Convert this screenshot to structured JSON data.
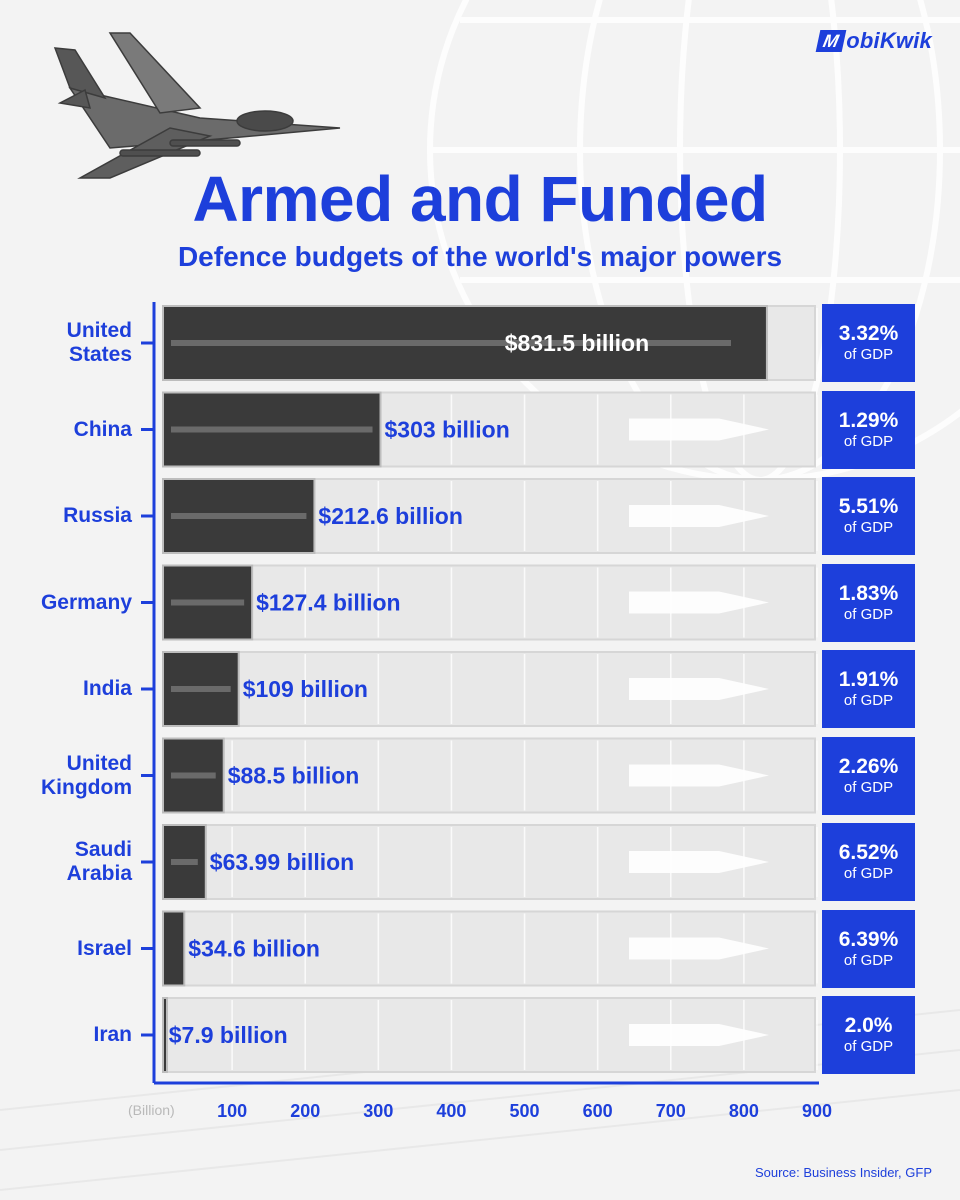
{
  "brand": {
    "name": "MobiKwik",
    "mark": "M",
    "rest": "obiKwik",
    "color": "#1d3fdb"
  },
  "header": {
    "title": "Armed and Funded",
    "subtitle": "Defence budgets of the world's major powers"
  },
  "chart_data": {
    "type": "bar",
    "orientation": "horizontal",
    "title": "Armed and Funded",
    "subtitle": "Defence budgets of the world's major powers",
    "xlabel": "(Billion)",
    "xlim": [
      0,
      900
    ],
    "xticks": [
      100,
      200,
      300,
      400,
      500,
      600,
      700,
      800,
      900
    ],
    "categories": [
      "United States",
      "China",
      "Russia",
      "Germany",
      "India",
      "United Kingdom",
      "Saudi Arabia",
      "Israel",
      "Iran"
    ],
    "category_lines": [
      [
        "United",
        "States"
      ],
      [
        "China"
      ],
      [
        "Russia"
      ],
      [
        "Germany"
      ],
      [
        "India"
      ],
      [
        "United",
        "Kingdom"
      ],
      [
        "Saudi",
        "Arabia"
      ],
      [
        "Israel"
      ],
      [
        "Iran"
      ]
    ],
    "values": [
      831.5,
      303,
      212.6,
      127.4,
      109,
      88.5,
      63.99,
      34.6,
      7.9
    ],
    "value_labels": [
      "$831.5 billion",
      "$303 billion",
      "$212.6 billion",
      "$127.4 billion",
      "$109 billion",
      "$88.5 billion",
      "$63.99 billion",
      "$34.6 billion",
      "$7.9 billion"
    ],
    "gdp_share": [
      "3.32%",
      "1.29%",
      "5.51%",
      "1.83%",
      "1.91%",
      "2.26%",
      "6.52%",
      "6.39%",
      "2.0%"
    ],
    "gdp_suffix": "of GDP",
    "colors": {
      "accent": "#1d3fdb",
      "bar": "#3a3a3a",
      "track": "#e8e8e8"
    }
  },
  "footer": {
    "source": "Source: Business Insider, GFP"
  }
}
